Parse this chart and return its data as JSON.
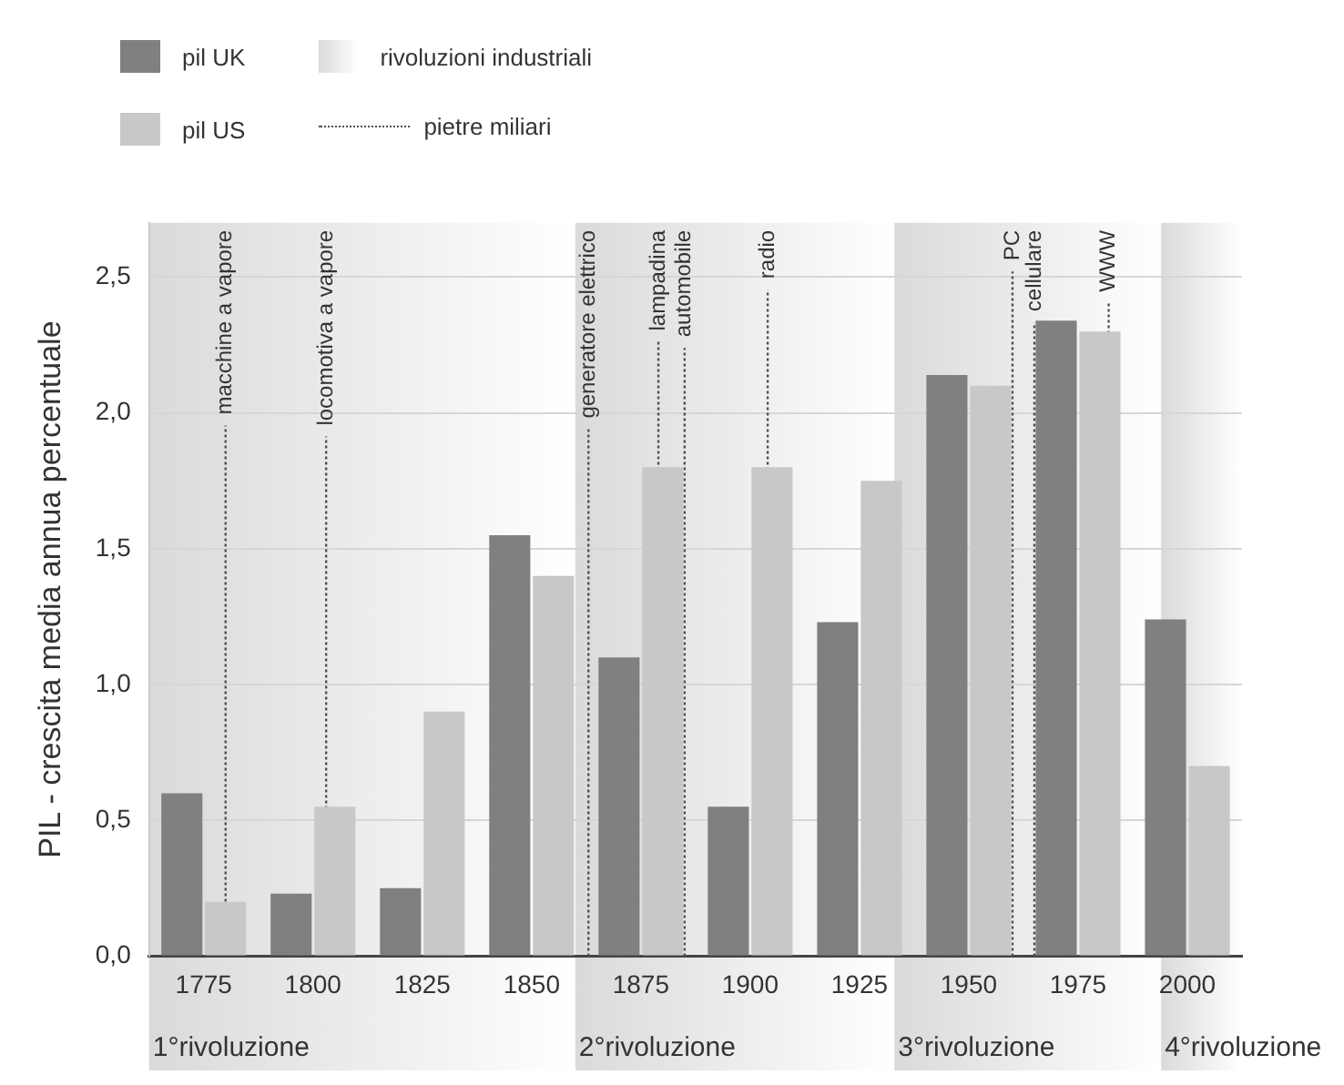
{
  "chart_data": {
    "type": "bar",
    "ylabel": "PIL - crescita media annua percentuale",
    "x": [
      1775,
      1800,
      1825,
      1850,
      1875,
      1900,
      1925,
      1950,
      1975,
      2000
    ],
    "series": [
      {
        "name": "pil UK",
        "color": "#808080",
        "values": [
          0.6,
          0.23,
          0.25,
          1.55,
          1.1,
          0.55,
          1.23,
          2.14,
          2.34,
          1.24
        ]
      },
      {
        "name": "pil US",
        "color": "#c8c8c8",
        "values": [
          0.2,
          0.55,
          0.9,
          1.4,
          1.8,
          1.8,
          1.75,
          2.1,
          2.3,
          0.7
        ]
      }
    ],
    "xlim": [
      1762.5,
      2012.5
    ],
    "xticks": [
      1775,
      1800,
      1825,
      1850,
      1875,
      1900,
      1925,
      1950,
      1975,
      2000
    ],
    "ylim": [
      0,
      2.7
    ],
    "yticks": [
      {
        "value": 0,
        "label": "0,0"
      },
      {
        "value": 0.5,
        "label": "0,5"
      },
      {
        "value": 1,
        "label": "1,0"
      },
      {
        "value": 1.5,
        "label": "1,5"
      },
      {
        "value": 2,
        "label": "2,0"
      },
      {
        "value": 2.5,
        "label": "2,5"
      }
    ],
    "grid": "y",
    "legend": "top left",
    "bands": [
      {
        "axis": "x",
        "from": 1762.5,
        "to": 1860,
        "label": "1°rivoluzione",
        "color": "#dadada"
      },
      {
        "axis": "x",
        "from": 1860,
        "to": 1933,
        "label": "2°rivoluzione",
        "color": "#dadada"
      },
      {
        "axis": "x",
        "from": 1933,
        "to": 1994,
        "label": "3°rivoluzione",
        "color": "#dadada"
      },
      {
        "axis": "x",
        "from": 1994,
        "to": 2012.5,
        "label": "4°rivoluzione",
        "color": "#dadada"
      }
    ],
    "ref_lines": [
      {
        "axis": "x",
        "value": 1780,
        "label": "macchine a vapore",
        "line_style": "dotted",
        "color": "#505050"
      },
      {
        "axis": "x",
        "value": 1803,
        "label": "locomotiva a vapore",
        "line_style": "dotted",
        "color": "#505050"
      },
      {
        "axis": "x",
        "value": 1863,
        "label": "generatore elettrico",
        "line_style": "dotted",
        "color": "#505050"
      },
      {
        "axis": "x",
        "value": 1879,
        "label": "lampadina",
        "line_style": "dotted",
        "color": "#505050"
      },
      {
        "axis": "x",
        "value": 1885,
        "label": "automobile",
        "line_style": "dotted",
        "color": "#505050"
      },
      {
        "axis": "x",
        "value": 1904,
        "label": "radio",
        "line_style": "dotted",
        "color": "#505050"
      },
      {
        "axis": "x",
        "value": 1960,
        "label": "PC",
        "line_style": "dotted",
        "color": "#505050"
      },
      {
        "axis": "x",
        "value": 1965,
        "label": "cellulare",
        "line_style": "dotted",
        "color": "#505050"
      },
      {
        "axis": "x",
        "value": 1982,
        "label": "WWW",
        "line_style": "dotted",
        "color": "#505050"
      }
    ],
    "annotations": [
      "rivoluzioni industriali",
      "pietre miliari"
    ]
  }
}
